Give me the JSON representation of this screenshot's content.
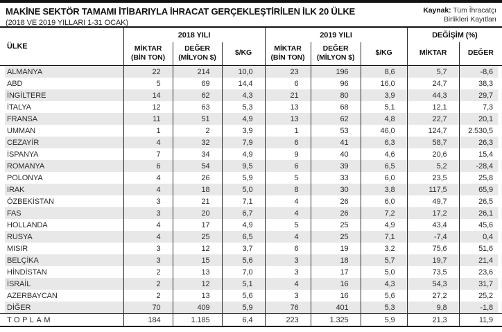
{
  "page": {
    "title": "MAKİNE SEKTÖR TAMAMI İTİBARIYLA İHRACAT GERÇEKLEŞTİRİLEN İLK 20 ÜLKE",
    "subtitle": "(2018 VE 2019 YILLARI 1-31 OCAK)",
    "source_label": "Kaynak:",
    "source_text": "Tüm İhracatçı Birlikleri Kayıtları"
  },
  "table_header": {
    "country": "ÜLKE",
    "group_2018": "2018 YILI",
    "group_2019": "2019 YILI",
    "group_change": "DEĞİŞİM (%)",
    "sub": [
      "MİKTAR\n(BİN TON)",
      "DEĞER\n(MİLYON $)",
      "$/KG",
      "MİKTAR\n(BİN TON)",
      "DEĞER\n(MİLYON $)",
      "$/KG",
      "MİKTAR",
      "DEĞER"
    ]
  },
  "chart_data": {
    "type": "table",
    "title": "MAKİNE SEKTÖR TAMAMI İTİBARIYLA İHRACAT GERÇEKLEŞTİRİLEN İLK 20 ÜLKE",
    "subtitle": "(2018 VE 2019 YILLARI 1-31 OCAK)",
    "source": "Kaynak: Tüm İhracatçı Birlikleri Kayıtları",
    "column_groups": [
      {
        "label": "ÜLKE",
        "span": 1
      },
      {
        "label": "2018 YILI",
        "span": 3
      },
      {
        "label": "2019 YILI",
        "span": 3
      },
      {
        "label": "DEĞİŞİM (%)",
        "span": 2
      }
    ],
    "columns": [
      "ÜLKE",
      "MİKTAR (BİN TON)",
      "DEĞER (MİLYON $)",
      "$/KG",
      "MİKTAR (BİN TON)",
      "DEĞER (MİLYON $)",
      "$/KG",
      "MİKTAR",
      "DEĞER"
    ],
    "rows": [
      [
        "ALMANYA",
        "22",
        "214",
        "10,0",
        "23",
        "196",
        "8,6",
        "5,7",
        "-8,6"
      ],
      [
        "ABD",
        "5",
        "69",
        "14,4",
        "6",
        "96",
        "16,0",
        "24,7",
        "38,3"
      ],
      [
        "İNGİLTERE",
        "14",
        "62",
        "4,3",
        "21",
        "80",
        "3,9",
        "44,3",
        "29,7"
      ],
      [
        "İTALYA",
        "12",
        "63",
        "5,3",
        "13",
        "68",
        "5,1",
        "12,1",
        "7,3"
      ],
      [
        "FRANSA",
        "11",
        "51",
        "4,9",
        "13",
        "62",
        "4,8",
        "22,7",
        "20,1"
      ],
      [
        "UMMAN",
        "1",
        "2",
        "3,9",
        "1",
        "53",
        "46,0",
        "124,7",
        "2.530,5"
      ],
      [
        "CEZAYİR",
        "4",
        "32",
        "7,9",
        "6",
        "41",
        "6,3",
        "58,7",
        "26,3"
      ],
      [
        "İSPANYA",
        "7",
        "34",
        "4,9",
        "9",
        "40",
        "4,6",
        "20,6",
        "15,4"
      ],
      [
        "ROMANYA",
        "6",
        "54",
        "9,5",
        "6",
        "39",
        "6,5",
        "5,2",
        "-28,4"
      ],
      [
        "POLONYA",
        "4",
        "26",
        "5,9",
        "5",
        "33",
        "6,0",
        "23,5",
        "25,8"
      ],
      [
        "IRAK",
        "4",
        "18",
        "5,0",
        "8",
        "30",
        "3,8",
        "117,5",
        "65,9"
      ],
      [
        "ÖZBEKİSTAN",
        "3",
        "21",
        "7,1",
        "4",
        "26",
        "6,0",
        "49,7",
        "26,5"
      ],
      [
        "FAS",
        "3",
        "20",
        "6,7",
        "4",
        "26",
        "7,2",
        "17,2",
        "26,1"
      ],
      [
        "HOLLANDA",
        "4",
        "17",
        "4,9",
        "5",
        "25",
        "4,9",
        "43,4",
        "45,6"
      ],
      [
        "RUSYA",
        "4",
        "25",
        "6,5",
        "4",
        "25",
        "7,1",
        "-7,4",
        "0,4"
      ],
      [
        "MISIR",
        "3",
        "12",
        "3,7",
        "6",
        "19",
        "3,2",
        "75,6",
        "51,6"
      ],
      [
        "BELÇİKA",
        "3",
        "15",
        "5,6",
        "3",
        "18",
        "5,7",
        "19,7",
        "21,4"
      ],
      [
        "HİNDİSTAN",
        "2",
        "13",
        "7,0",
        "3",
        "17",
        "5,0",
        "73,5",
        "23,6"
      ],
      [
        "İSRAİL",
        "2",
        "12",
        "5,1",
        "4",
        "16",
        "4,3",
        "54,3",
        "31,7"
      ],
      [
        "AZERBAYCAN",
        "2",
        "13",
        "5,6",
        "3",
        "16",
        "5,6",
        "27,2",
        "25,2"
      ],
      [
        "DİĞER",
        "70",
        "409",
        "5,9",
        "76",
        "401",
        "5,3",
        "9,8",
        "-1,8"
      ],
      [
        "TOPLAM",
        "184",
        "1.185",
        "6,4",
        "223",
        "1.325",
        "5,9",
        "21,3",
        "11,9"
      ]
    ]
  }
}
